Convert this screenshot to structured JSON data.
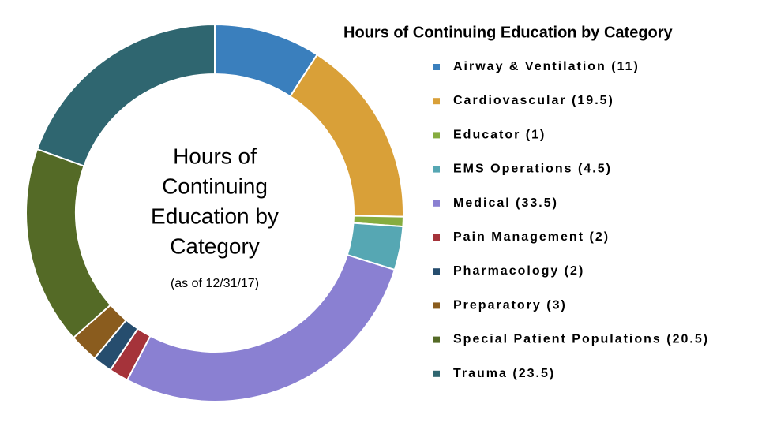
{
  "chart_data": {
    "type": "donut",
    "title": "Hours of Continuing Education by Category",
    "center_lines": [
      "Hours of",
      "Continuing",
      "Education by",
      "Category"
    ],
    "subtitle": "(as of 12/31/17)",
    "categories": [
      "Airway & Ventilation",
      "Cardiovascular",
      "Educator",
      "EMS Operations",
      "Medical",
      "Pain Management",
      "Pharmacology",
      "Preparatory",
      "Special Patient Populations",
      "Trauma"
    ],
    "values": [
      11,
      19.5,
      1,
      4.5,
      33.5,
      2,
      2,
      3,
      20.5,
      23.5
    ],
    "value_labels": [
      "(11)",
      "(19.5)",
      "(1)",
      "(4.5)",
      "(33.5)",
      "(2)",
      "(2)",
      "(3)",
      "(20.5)",
      "(23.5)"
    ],
    "colors": [
      "#3a7fbd",
      "#d9a038",
      "#86ac3f",
      "#56a7b3",
      "#8a80d2",
      "#a5333a",
      "#264d6e",
      "#8a5c1e",
      "#546a26",
      "#2f6670"
    ]
  }
}
